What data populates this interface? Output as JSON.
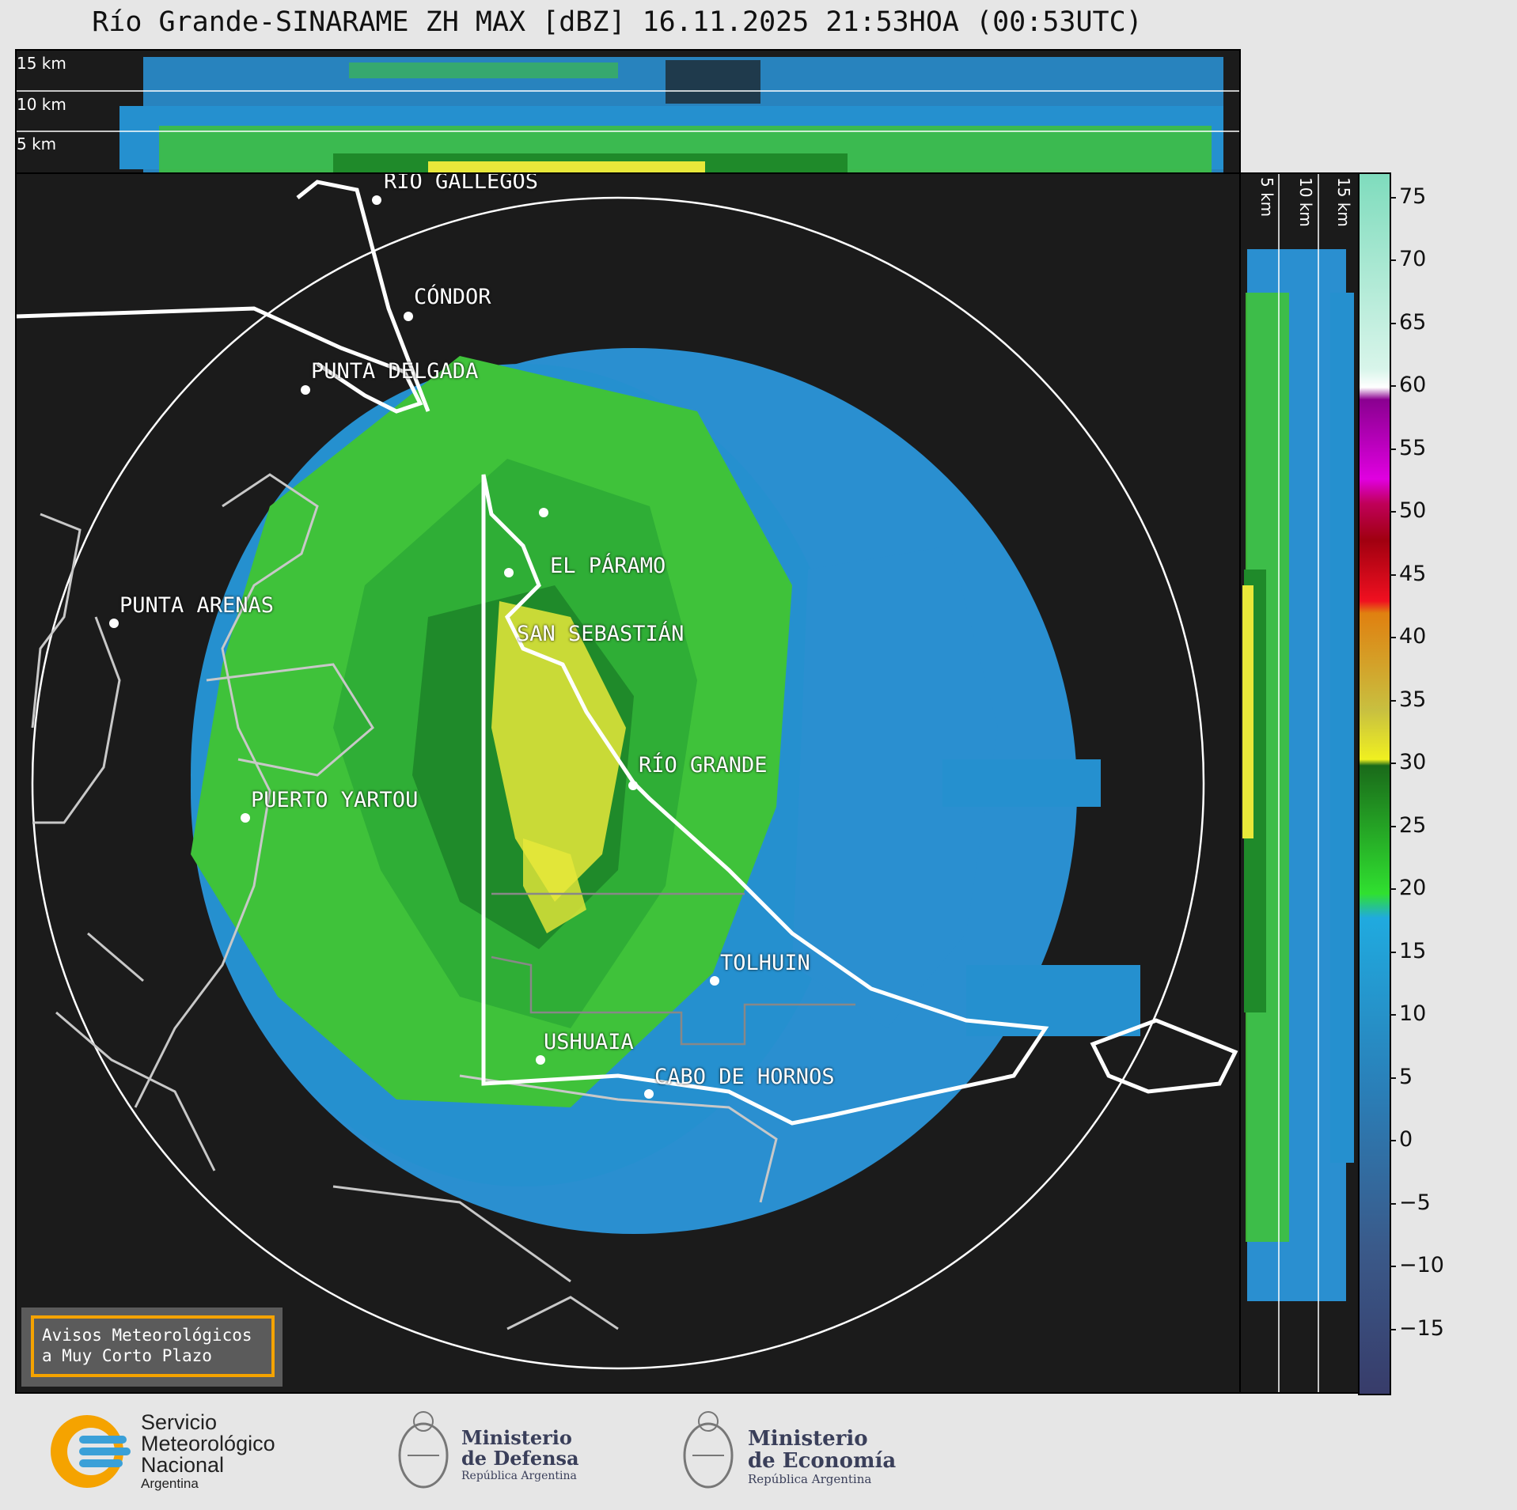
{
  "title": "Río Grande-SINARAME ZH MAX [dBZ] 16.11.2025 21:53HOA (00:53UTC)",
  "top_panel": {
    "labels": [
      "15 km",
      "10 km",
      "5 km"
    ]
  },
  "right_panel": {
    "labels": [
      "5 km",
      "10 km",
      "15 km"
    ]
  },
  "colorbar": {
    "ticks": [
      "75",
      "70",
      "65",
      "60",
      "55",
      "50",
      "45",
      "40",
      "35",
      "30",
      "25",
      "20",
      "15",
      "10",
      "5",
      "0",
      "−5",
      "−10",
      "−15"
    ],
    "range": [
      -20,
      77
    ]
  },
  "places": [
    {
      "name": "RÍO GALLEGOS"
    },
    {
      "name": "CÓNDOR"
    },
    {
      "name": "PUNTA DELGADA"
    },
    {
      "name": "EL PÁRAMO"
    },
    {
      "name": "SAN SEBASTIÁN"
    },
    {
      "name": "PUNTA ARENAS"
    },
    {
      "name": "RÍO GRANDE"
    },
    {
      "name": "PUERTO YARTOU"
    },
    {
      "name": "TOLHUIN"
    },
    {
      "name": "USHUAIA"
    },
    {
      "name": "CABO DE HORNOS"
    }
  ],
  "alert_box": {
    "line1": "Avisos Meteorológicos",
    "line2": "a Muy Corto Plazo"
  },
  "logos": {
    "smn": {
      "line1": "Servicio",
      "line2": "Meteorológico",
      "line3": "Nacional",
      "line4": "Argentina"
    },
    "defensa": {
      "line1": "Ministerio",
      "line2": "de Defensa",
      "line3": "República Argentina"
    },
    "economia": {
      "line1": "Ministerio",
      "line2": "de Economía",
      "line3": "República Argentina"
    }
  },
  "colors": {
    "accent_orange": "#f5a300",
    "background": "#1b1b1b",
    "blue_echo": "#2a8fd0",
    "green_echo": "#3fc23a",
    "yellow_echo": "#e8e83a"
  }
}
